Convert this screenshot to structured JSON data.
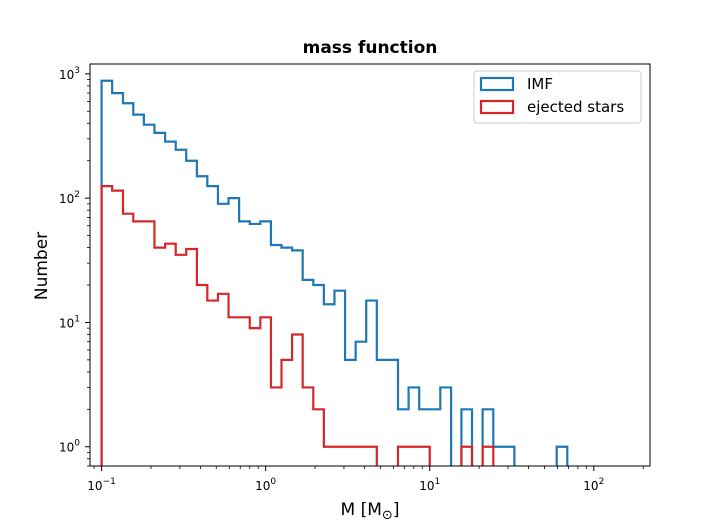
{
  "chart_data": {
    "type": "histogram",
    "title": "mass function",
    "xlabel": "M [M",
    "xlabel_sub": "⊙",
    "xlabel_close": "]",
    "ylabel": "Number",
    "xscale": "log",
    "yscale": "log",
    "xlim": [
      0.085,
      220
    ],
    "ylim": [
      0.7,
      1200
    ],
    "grid": false,
    "legend_position": "top-right",
    "x_ticks": [
      {
        "value": 0.1,
        "base": "10",
        "exp": "−1"
      },
      {
        "value": 1,
        "base": "10",
        "exp": "0"
      },
      {
        "value": 10,
        "base": "10",
        "exp": "1"
      },
      {
        "value": 100,
        "base": "10",
        "exp": "2"
      }
    ],
    "y_ticks": [
      {
        "value": 1,
        "base": "10",
        "exp": "0"
      },
      {
        "value": 10,
        "base": "10",
        "exp": "1"
      },
      {
        "value": 100,
        "base": "10",
        "exp": "2"
      },
      {
        "value": 1000,
        "base": "10",
        "exp": "3"
      }
    ],
    "bin_edges": [
      0.1,
      0.116,
      0.135,
      0.156,
      0.181,
      0.21,
      0.244,
      0.283,
      0.328,
      0.381,
      0.441,
      0.512,
      0.594,
      0.689,
      0.8,
      0.928,
      1.077,
      1.249,
      1.449,
      1.681,
      1.951,
      2.263,
      2.626,
      3.047,
      3.535,
      4.101,
      4.758,
      5.521,
      6.405,
      7.432,
      8.623,
      10.0,
      11.6,
      13.5,
      15.6,
      18.1,
      21.0,
      24.4,
      28.3,
      32.8,
      38.1,
      44.1,
      51.2,
      59.4,
      68.9,
      80.0
    ],
    "series": [
      {
        "name": "IMF",
        "color": "#1f77b4",
        "values": [
          880,
          700,
          580,
          470,
          390,
          335,
          285,
          245,
          200,
          150,
          125,
          90,
          100,
          65,
          62,
          65,
          42,
          40,
          38,
          22,
          20,
          14,
          18,
          5,
          7,
          15,
          5,
          5,
          2,
          3,
          2,
          2,
          3,
          0,
          2,
          0,
          2,
          1,
          1,
          0,
          0,
          0,
          0,
          1,
          0
        ]
      },
      {
        "name": "ejected stars",
        "color": "#d62728",
        "values": [
          125,
          115,
          75,
          65,
          65,
          40,
          43,
          35,
          39,
          20,
          15,
          17,
          11,
          11,
          9,
          11,
          3,
          5,
          8,
          3,
          2,
          1,
          1,
          1,
          1,
          1,
          0,
          0,
          1,
          1,
          1,
          0,
          0,
          0,
          1,
          0,
          1,
          0,
          0,
          0,
          0,
          0,
          0,
          0,
          0
        ]
      }
    ]
  }
}
